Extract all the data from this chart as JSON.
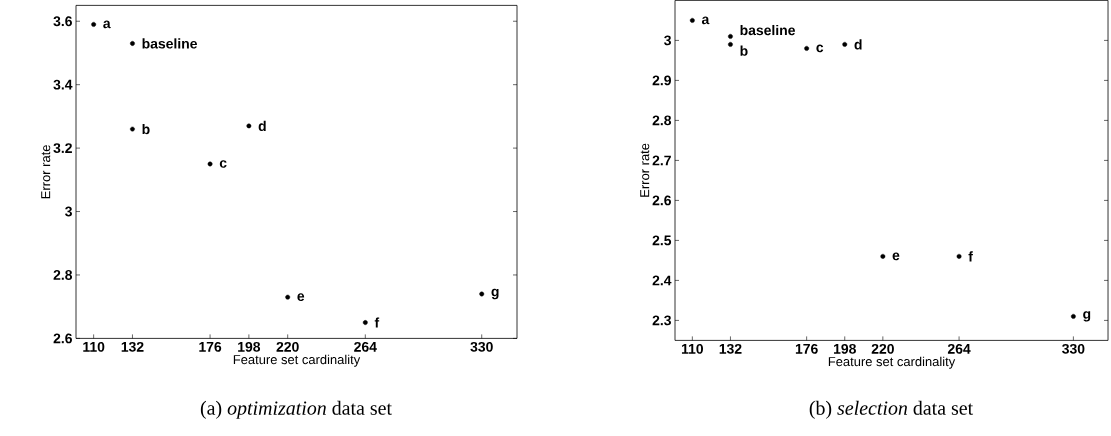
{
  "chart_data": [
    {
      "type": "scatter",
      "title": "(a) *optimization* data set",
      "xlabel": "Feature set cardinality",
      "ylabel": "Error rate",
      "x": [
        110,
        132,
        132,
        176,
        198,
        220,
        264,
        330
      ],
      "series": [
        {
          "color": "#000000",
          "values": [
            3.59,
            3.53,
            3.26,
            3.15,
            3.27,
            2.73,
            2.65,
            2.74
          ]
        }
      ],
      "marker": "circle",
      "xlim": [
        100,
        350
      ],
      "ylim": [
        2.6,
        3.65
      ],
      "xticks": [
        110,
        132,
        176,
        198,
        220,
        264,
        330
      ],
      "yticks": [
        2.6,
        2.8,
        3,
        3.2,
        3.4,
        3.6
      ],
      "annotations": [
        {
          "text": "a",
          "x": 110,
          "y": 3.59
        },
        {
          "text": "baseline",
          "x": 132,
          "y": 3.53
        },
        {
          "text": "b",
          "x": 132,
          "y": 3.26
        },
        {
          "text": "c",
          "x": 176,
          "y": 3.15
        },
        {
          "text": "d",
          "x": 198,
          "y": 3.27
        },
        {
          "text": "e",
          "x": 220,
          "y": 2.73
        },
        {
          "text": "f",
          "x": 264,
          "y": 2.65
        },
        {
          "text": "g",
          "x": 330,
          "y": 2.74
        }
      ]
    },
    {
      "type": "scatter",
      "title": "(b) *selection* data set",
      "xlabel": "Feature set cardinality",
      "ylabel": "Error rate",
      "x": [
        110,
        132,
        132,
        176,
        198,
        220,
        264,
        330
      ],
      "series": [
        {
          "color": "#000000",
          "values": [
            3.05,
            3.01,
            2.99,
            2.98,
            2.99,
            2.46,
            2.46,
            2.31
          ]
        }
      ],
      "marker": "circle",
      "xlim": [
        100,
        350
      ],
      "ylim": [
        2.25,
        3.1
      ],
      "xticks": [
        110,
        132,
        176,
        198,
        220,
        264,
        330
      ],
      "yticks": [
        2.3,
        2.4,
        2.5,
        2.6,
        2.7,
        2.8,
        2.9,
        3
      ],
      "annotations": [
        {
          "text": "a",
          "x": 110,
          "y": 3.05
        },
        {
          "text": "baseline",
          "x": 132,
          "y": 3.01
        },
        {
          "text": "b",
          "x": 132,
          "y": 2.99
        },
        {
          "text": "c",
          "x": 176,
          "y": 2.98
        },
        {
          "text": "d",
          "x": 198,
          "y": 2.99
        },
        {
          "text": "e",
          "x": 220,
          "y": 2.46
        },
        {
          "text": "f",
          "x": 264,
          "y": 2.46
        },
        {
          "text": "g",
          "x": 330,
          "y": 2.31
        }
      ]
    }
  ]
}
